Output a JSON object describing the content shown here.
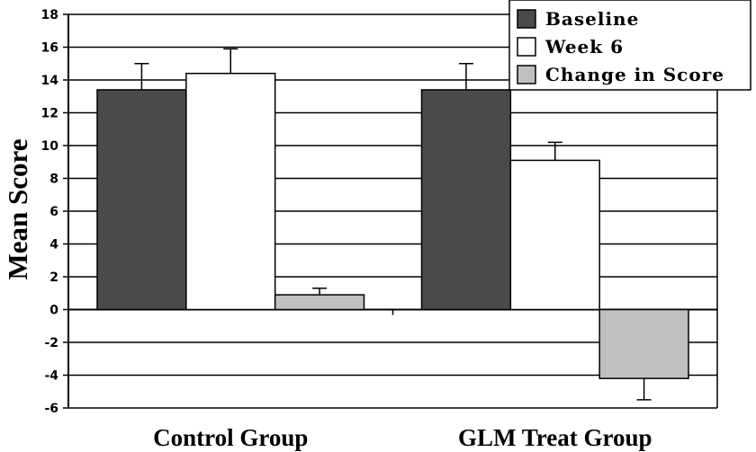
{
  "chart_data": {
    "type": "bar",
    "title": "",
    "xlabel": "",
    "ylabel": "Mean Score",
    "ylim": [
      -6,
      18
    ],
    "yticks": [
      18,
      16,
      14,
      12,
      10,
      8,
      6,
      4,
      2,
      0,
      -2,
      -4,
      -6
    ],
    "grid": true,
    "legend_position": "top-right",
    "categories": [
      "Control Group",
      "GLM Treat Group"
    ],
    "series": [
      {
        "name": "Baseline",
        "color": "#4a4a4a",
        "values": [
          13.4,
          13.4
        ],
        "error": [
          1.6,
          1.6
        ]
      },
      {
        "name": "Week 6",
        "color": "#ffffff",
        "values": [
          14.4,
          9.1
        ],
        "error": [
          1.5,
          1.1
        ]
      },
      {
        "name": "Change in Score",
        "color": "#c0c0c0",
        "values": [
          0.9,
          -4.2
        ],
        "error": [
          0.4,
          1.3
        ]
      }
    ]
  }
}
